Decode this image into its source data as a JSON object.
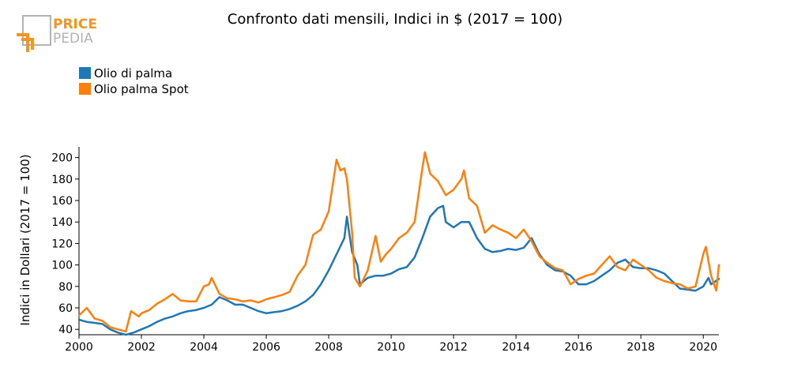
{
  "logo": {
    "line1": "PRICE",
    "line2": "PEDIA",
    "accent_color": "#f7941d",
    "gray_color": "#b3b3b3"
  },
  "chart_data": {
    "type": "line",
    "title": "Confronto dati mensili, Indici in $ (2017 = 100)",
    "xlabel": "",
    "ylabel": "Indici in Dollari (2017 = 100)",
    "xlim": [
      2000,
      2020.5
    ],
    "ylim": [
      35,
      210
    ],
    "x_ticks": [
      2000,
      2002,
      2004,
      2006,
      2008,
      2010,
      2012,
      2014,
      2016,
      2018,
      2020
    ],
    "x_tick_labels": [
      "2000",
      "2002",
      "2004",
      "2006",
      "2008",
      "2010",
      "2012",
      "2014",
      "2016",
      "2018",
      "2020"
    ],
    "y_ticks": [
      40,
      60,
      80,
      100,
      120,
      140,
      160,
      180,
      200
    ],
    "y_tick_labels": [
      "40",
      "60",
      "80",
      "100",
      "120",
      "140",
      "160",
      "180",
      "200"
    ],
    "grid": false,
    "legend_position": "top-left",
    "series": [
      {
        "name": "Olio di palma",
        "color": "#1f77b4",
        "points": [
          [
            2000.0,
            49
          ],
          [
            2000.25,
            47
          ],
          [
            2000.5,
            46
          ],
          [
            2000.75,
            45
          ],
          [
            2001.0,
            40
          ],
          [
            2001.25,
            37
          ],
          [
            2001.5,
            35
          ],
          [
            2001.75,
            37
          ],
          [
            2002.0,
            40
          ],
          [
            2002.25,
            43
          ],
          [
            2002.5,
            47
          ],
          [
            2002.75,
            50
          ],
          [
            2003.0,
            52
          ],
          [
            2003.25,
            55
          ],
          [
            2003.5,
            57
          ],
          [
            2003.75,
            58
          ],
          [
            2004.0,
            60
          ],
          [
            2004.25,
            63
          ],
          [
            2004.5,
            70
          ],
          [
            2004.75,
            67
          ],
          [
            2005.0,
            63
          ],
          [
            2005.25,
            63
          ],
          [
            2005.5,
            60
          ],
          [
            2005.75,
            57
          ],
          [
            2006.0,
            55
          ],
          [
            2006.25,
            56
          ],
          [
            2006.5,
            57
          ],
          [
            2006.75,
            59
          ],
          [
            2007.0,
            62
          ],
          [
            2007.25,
            66
          ],
          [
            2007.5,
            72
          ],
          [
            2007.75,
            82
          ],
          [
            2008.0,
            95
          ],
          [
            2008.25,
            110
          ],
          [
            2008.5,
            125
          ],
          [
            2008.5833,
            145
          ],
          [
            2008.6667,
            128
          ],
          [
            2008.75,
            112
          ],
          [
            2008.9167,
            100
          ],
          [
            2009.0,
            82
          ],
          [
            2009.25,
            88
          ],
          [
            2009.5,
            90
          ],
          [
            2009.75,
            90
          ],
          [
            2010.0,
            92
          ],
          [
            2010.25,
            96
          ],
          [
            2010.5,
            98
          ],
          [
            2010.75,
            107
          ],
          [
            2011.0,
            125
          ],
          [
            2011.25,
            145
          ],
          [
            2011.5,
            153
          ],
          [
            2011.6667,
            155
          ],
          [
            2011.75,
            140
          ],
          [
            2012.0,
            135
          ],
          [
            2012.25,
            140
          ],
          [
            2012.5,
            140
          ],
          [
            2012.75,
            125
          ],
          [
            2013.0,
            115
          ],
          [
            2013.25,
            112
          ],
          [
            2013.5,
            113
          ],
          [
            2013.75,
            115
          ],
          [
            2014.0,
            114
          ],
          [
            2014.25,
            116
          ],
          [
            2014.5,
            125
          ],
          [
            2014.75,
            110
          ],
          [
            2015.0,
            100
          ],
          [
            2015.25,
            95
          ],
          [
            2015.5,
            94
          ],
          [
            2015.75,
            90
          ],
          [
            2016.0,
            82
          ],
          [
            2016.25,
            82
          ],
          [
            2016.5,
            85
          ],
          [
            2016.75,
            90
          ],
          [
            2017.0,
            95
          ],
          [
            2017.25,
            102
          ],
          [
            2017.5,
            105
          ],
          [
            2017.75,
            98
          ],
          [
            2018.0,
            97
          ],
          [
            2018.25,
            97
          ],
          [
            2018.5,
            95
          ],
          [
            2018.75,
            92
          ],
          [
            2019.0,
            85
          ],
          [
            2019.25,
            78
          ],
          [
            2019.5,
            77
          ],
          [
            2019.75,
            76
          ],
          [
            2020.0,
            80
          ],
          [
            2020.1667,
            88
          ],
          [
            2020.25,
            82
          ],
          [
            2020.5,
            87
          ]
        ]
      },
      {
        "name": "Olio palma Spot",
        "color": "#ff7f0e",
        "points": [
          [
            2000.0,
            53
          ],
          [
            2000.25,
            60
          ],
          [
            2000.5,
            50
          ],
          [
            2000.75,
            48
          ],
          [
            2001.0,
            42
          ],
          [
            2001.25,
            40
          ],
          [
            2001.5,
            38
          ],
          [
            2001.6667,
            57
          ],
          [
            2001.9167,
            52
          ],
          [
            2002.0,
            55
          ],
          [
            2002.25,
            58
          ],
          [
            2002.5,
            64
          ],
          [
            2002.75,
            68
          ],
          [
            2003.0,
            73
          ],
          [
            2003.25,
            67
          ],
          [
            2003.5,
            66
          ],
          [
            2003.75,
            66
          ],
          [
            2004.0,
            80
          ],
          [
            2004.1667,
            82
          ],
          [
            2004.25,
            88
          ],
          [
            2004.5,
            73
          ],
          [
            2004.75,
            69
          ],
          [
            2005.0,
            68
          ],
          [
            2005.25,
            66
          ],
          [
            2005.5,
            67
          ],
          [
            2005.75,
            65
          ],
          [
            2006.0,
            68
          ],
          [
            2006.25,
            70
          ],
          [
            2006.5,
            72
          ],
          [
            2006.75,
            75
          ],
          [
            2007.0,
            90
          ],
          [
            2007.25,
            100
          ],
          [
            2007.5,
            128
          ],
          [
            2007.75,
            133
          ],
          [
            2008.0,
            150
          ],
          [
            2008.25,
            198
          ],
          [
            2008.375,
            188
          ],
          [
            2008.5,
            190
          ],
          [
            2008.5833,
            180
          ],
          [
            2008.75,
            130
          ],
          [
            2008.8333,
            88
          ],
          [
            2009.0,
            80
          ],
          [
            2009.25,
            95
          ],
          [
            2009.5,
            127
          ],
          [
            2009.6667,
            103
          ],
          [
            2009.8333,
            110
          ],
          [
            2010.0,
            115
          ],
          [
            2010.25,
            125
          ],
          [
            2010.5,
            130
          ],
          [
            2010.75,
            140
          ],
          [
            2011.0,
            190
          ],
          [
            2011.0833,
            205
          ],
          [
            2011.25,
            185
          ],
          [
            2011.5,
            178
          ],
          [
            2011.75,
            165
          ],
          [
            2012.0,
            170
          ],
          [
            2012.25,
            180
          ],
          [
            2012.3333,
            188
          ],
          [
            2012.5,
            162
          ],
          [
            2012.75,
            155
          ],
          [
            2013.0,
            130
          ],
          [
            2013.25,
            137
          ],
          [
            2013.5,
            133
          ],
          [
            2013.75,
            130
          ],
          [
            2014.0,
            125
          ],
          [
            2014.25,
            133
          ],
          [
            2014.5,
            122
          ],
          [
            2014.75,
            108
          ],
          [
            2015.0,
            102
          ],
          [
            2015.25,
            97
          ],
          [
            2015.5,
            95
          ],
          [
            2015.75,
            82
          ],
          [
            2016.0,
            87
          ],
          [
            2016.25,
            90
          ],
          [
            2016.5,
            92
          ],
          [
            2016.75,
            100
          ],
          [
            2017.0,
            108
          ],
          [
            2017.25,
            98
          ],
          [
            2017.5,
            95
          ],
          [
            2017.75,
            105
          ],
          [
            2018.0,
            100
          ],
          [
            2018.25,
            95
          ],
          [
            2018.5,
            88
          ],
          [
            2018.75,
            85
          ],
          [
            2019.0,
            83
          ],
          [
            2019.25,
            82
          ],
          [
            2019.5,
            78
          ],
          [
            2019.75,
            80
          ],
          [
            2020.0,
            110
          ],
          [
            2020.0833,
            117
          ],
          [
            2020.25,
            90
          ],
          [
            2020.4167,
            76
          ],
          [
            2020.5,
            100
          ]
        ]
      }
    ]
  }
}
